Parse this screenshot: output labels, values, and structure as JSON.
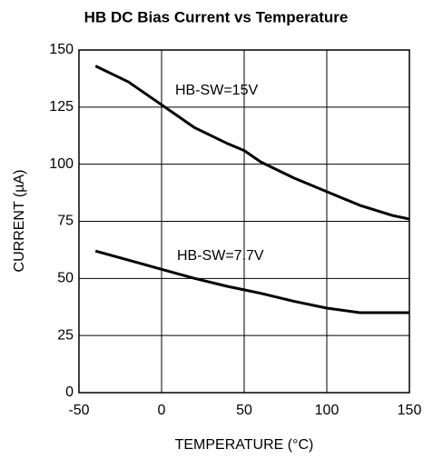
{
  "chart_data": {
    "type": "line",
    "title": "HB DC Bias Current vs Temperature",
    "xlabel": "TEMPERATURE (°C)",
    "ylabel": "CURRENT (µA)",
    "x": [
      -40,
      -20,
      0,
      20,
      40,
      50,
      60,
      80,
      100,
      120,
      140,
      150
    ],
    "series": [
      {
        "name": "HB-SW=15V",
        "color": "#000000",
        "values": [
          143,
          136,
          126,
          116,
          109,
          106,
          101,
          94,
          88,
          82,
          77.5,
          76
        ]
      },
      {
        "name": "HB-SW=7.7V",
        "color": "#000000",
        "values": [
          62,
          58,
          54,
          50,
          46.5,
          45,
          43.5,
          40,
          37,
          35,
          35,
          35
        ]
      }
    ],
    "xlim": [
      -50,
      150
    ],
    "xticks": [
      -50,
      0,
      50,
      100,
      150
    ],
    "ylim": [
      0,
      150
    ],
    "yticks": [
      0,
      25,
      50,
      75,
      100,
      125,
      150
    ],
    "grid": true
  }
}
